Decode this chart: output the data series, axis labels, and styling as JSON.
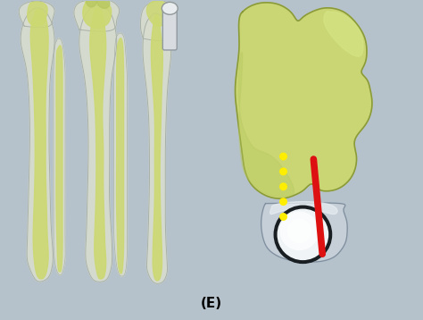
{
  "background_color": "#b5c2cb",
  "figure_label": "(E)",
  "label_fontsize": 11,
  "bone_green_dark": "#8a9a3a",
  "bone_green_mid": "#b8c860",
  "bone_green_light": "#ccd870",
  "bone_green_highlight": "#d8e888",
  "bone_white": "#d8ddd0",
  "bone_gray": "#a8b0a8",
  "bone_shadow": "#707870",
  "implant_light": "#e8ecee",
  "implant_mid": "#c0cad0",
  "implant_dark": "#8090a0",
  "implant_rim": "#404850",
  "red_color": "#dd1111",
  "yellow_color": "#ffee00"
}
